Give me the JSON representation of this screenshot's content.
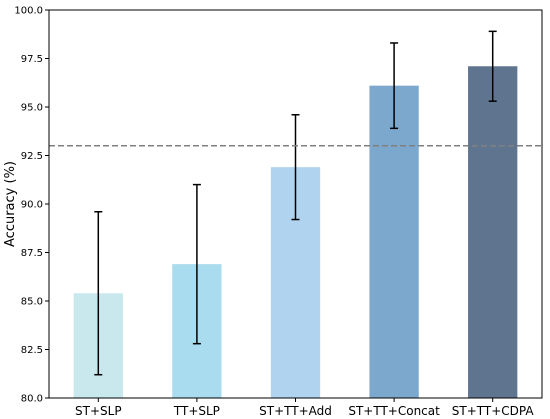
{
  "chart_data": {
    "type": "bar",
    "title": "",
    "xlabel": "",
    "ylabel": "Accuracy (%)",
    "ylim": [
      80.0,
      100.0
    ],
    "yticks": [
      "80.0",
      "82.5",
      "85.0",
      "87.5",
      "90.0",
      "92.5",
      "95.0",
      "97.5",
      "100.0"
    ],
    "categories": [
      "ST+SLP",
      "TT+SLP",
      "ST+TT+Add",
      "ST+TT+Concat",
      "ST+TT+CDPA"
    ],
    "values": [
      85.4,
      86.9,
      91.9,
      96.1,
      97.1
    ],
    "error_low": [
      81.2,
      82.8,
      89.2,
      93.9,
      95.3
    ],
    "error_high": [
      89.6,
      91.0,
      94.6,
      98.3,
      98.9
    ],
    "bar_colors": [
      "#c8e8ee",
      "#a9dcee",
      "#b0d3ef",
      "#7ba8cc",
      "#5f748f"
    ],
    "reference_line": {
      "value": 93.0,
      "style": "dashed",
      "color": "#808080"
    },
    "grid": false,
    "legend": "none"
  }
}
